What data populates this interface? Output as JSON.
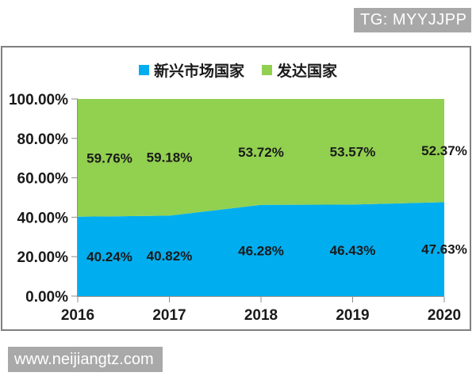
{
  "badge": {
    "text": "TG: MYYJJPP",
    "bg": "#A8A8A8",
    "fg": "#FFFFFF"
  },
  "watermark": {
    "text": "www.neijiangtz.com",
    "bg": "#A9A9A9",
    "fg": "#FFFFFF"
  },
  "chart_data": {
    "type": "area",
    "stacked": true,
    "percent_stacked": true,
    "x": [
      "2016",
      "2017",
      "2018",
      "2019",
      "2020"
    ],
    "series": [
      {
        "name": "新兴市场国家",
        "color": "#00AEEF",
        "values": [
          40.24,
          40.82,
          46.28,
          46.43,
          47.63
        ],
        "labels": [
          "40.24%",
          "40.82%",
          "46.28%",
          "46.43%",
          "47.63%"
        ]
      },
      {
        "name": "发达国家",
        "color": "#92D050",
        "values": [
          59.76,
          59.18,
          53.72,
          53.57,
          52.37
        ],
        "labels": [
          "59.76%",
          "59.18%",
          "53.72%",
          "53.57%",
          "52.37%"
        ]
      }
    ],
    "ylim": [
      0,
      100
    ],
    "ytick_step": 20,
    "ytick_labels": [
      "0.00%",
      "20.00%",
      "40.00%",
      "60.00%",
      "80.00%",
      "100.00%"
    ],
    "legend_position": "top",
    "grid": false,
    "axis_color": "#8E8E8E",
    "text_color": "#1A1A1A"
  }
}
